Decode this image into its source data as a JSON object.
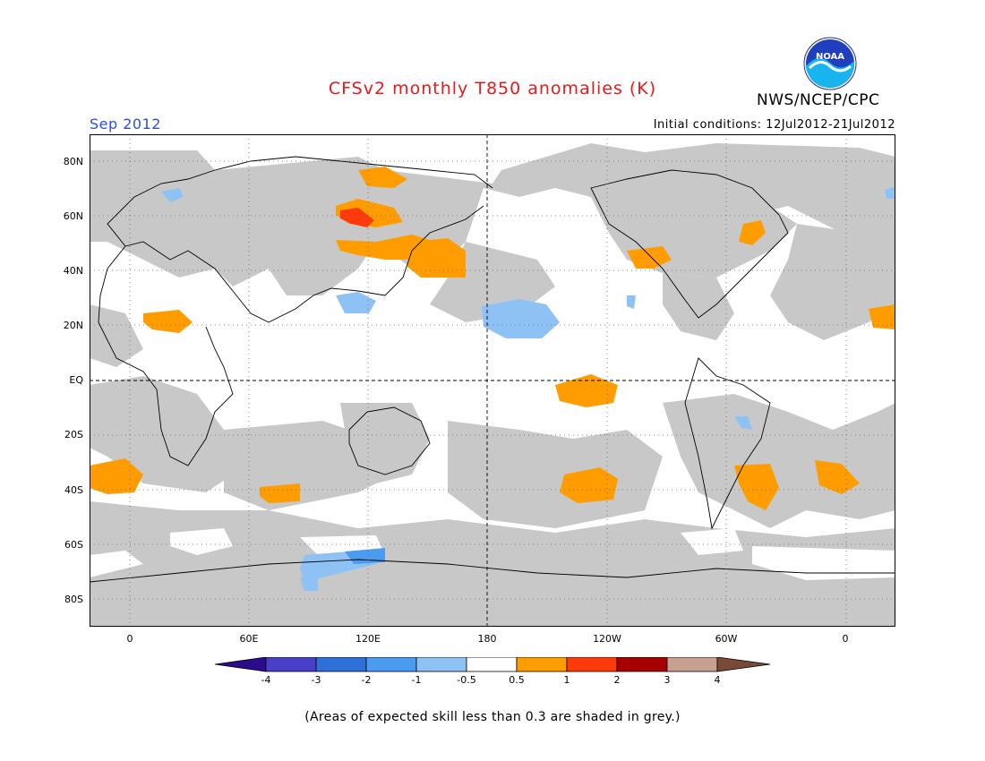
{
  "header": {
    "title": "CFSv2 monthly T850 anomalies (K)",
    "agency": "NWS/NCEP/CPC",
    "logo_text": "NOAA",
    "period": "Sep 2012",
    "initial_conditions": "Initial conditions: 12Jul2012-21Jul2012"
  },
  "map": {
    "projection": "equirectangular",
    "lat_labels": [
      "80N",
      "60N",
      "40N",
      "20N",
      "EQ",
      "20S",
      "40S",
      "60S",
      "80S"
    ],
    "lon_labels": [
      "0",
      "60E",
      "120E",
      "180",
      "120W",
      "60W",
      "0"
    ],
    "grid": "dotted",
    "skill_mask_color": "#c8c8c8"
  },
  "colorbar": {
    "tick_labels": [
      "-4",
      "-3",
      "-2",
      "-1",
      "-0.5",
      "0.5",
      "1",
      "2",
      "3",
      "4"
    ],
    "colors": [
      "#2a0c8c",
      "#4a3fc8",
      "#2e6fd8",
      "#4b9bf0",
      "#8ec2f5",
      "#ffffff",
      "#ff9c00",
      "#ff3a0a",
      "#a80000",
      "#c8a092",
      "#7a4a38"
    ]
  },
  "footnote": "(Areas of expected skill less than 0.3 are shaded in grey.)"
}
